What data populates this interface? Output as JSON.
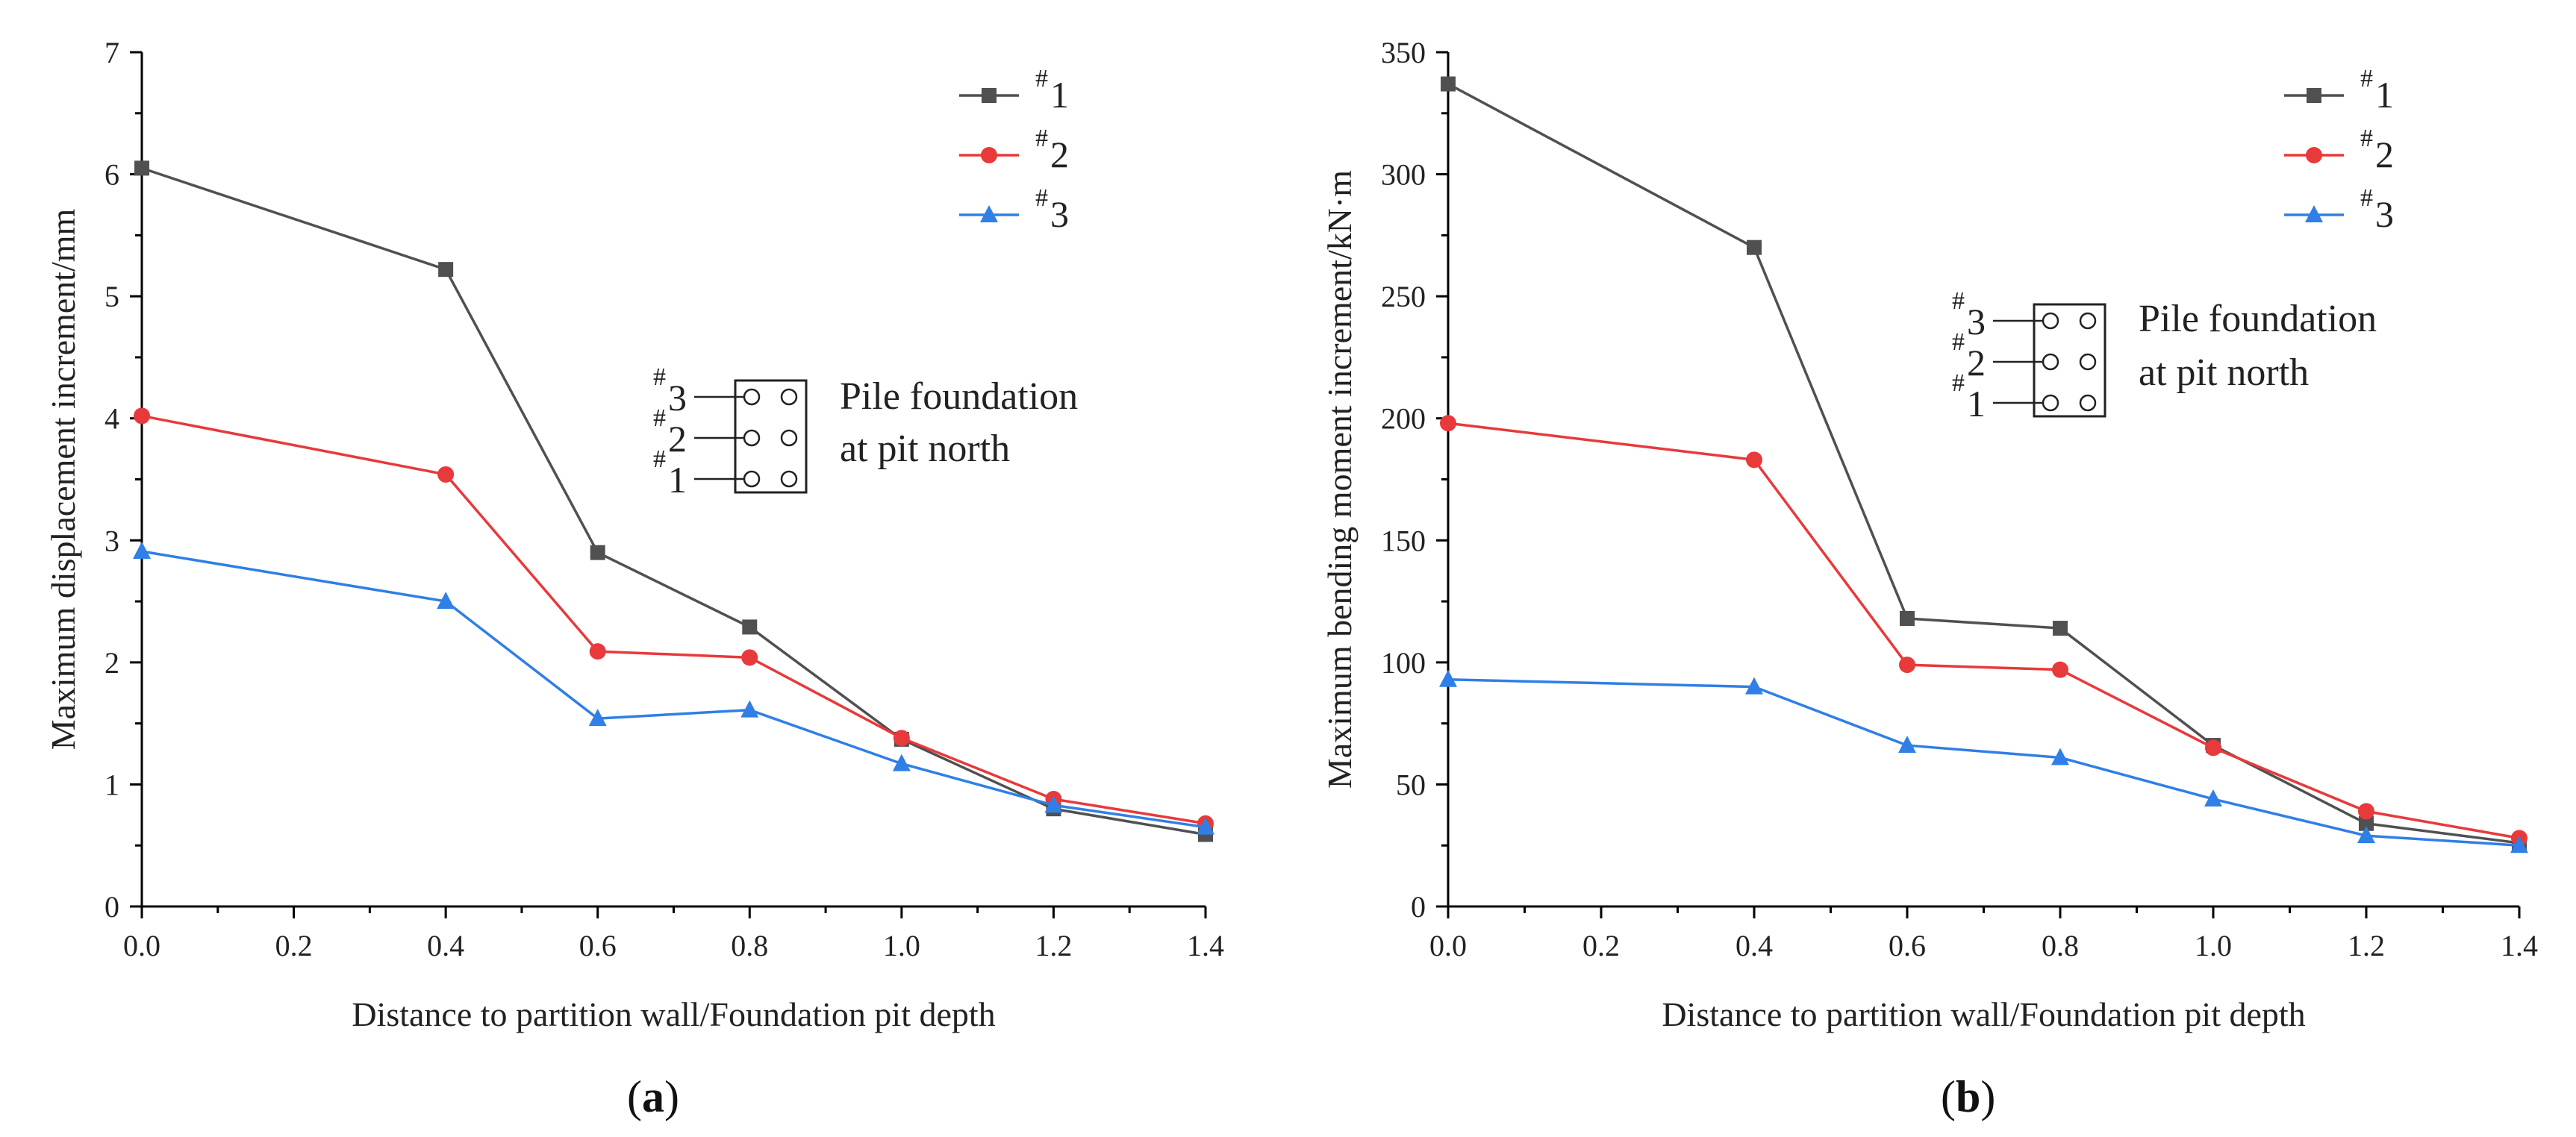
{
  "chart_data": [
    {
      "type": "line",
      "panel_label": "(a)",
      "xlabel": "Distance to partition wall/Foundation pit depth",
      "ylabel": "Maximum displacement increment/mm",
      "xlim": [
        0.0,
        1.4
      ],
      "ylim": [
        0,
        7
      ],
      "xticks": [
        "0.0",
        "0.2",
        "0.4",
        "0.6",
        "0.8",
        "1.0",
        "1.2",
        "1.4"
      ],
      "yticks": [
        "0",
        "1",
        "2",
        "3",
        "4",
        "5",
        "6",
        "7"
      ],
      "x": [
        0.0,
        0.4,
        0.6,
        0.8,
        1.0,
        1.2,
        1.4
      ],
      "series": [
        {
          "name": "1",
          "prefix": "#",
          "marker": "square",
          "color": "#505050",
          "values": [
            6.05,
            5.22,
            2.9,
            2.29,
            1.37,
            0.8,
            0.59
          ]
        },
        {
          "name": "2",
          "prefix": "#",
          "marker": "circle",
          "color": "#e8393b",
          "values": [
            4.02,
            3.54,
            2.09,
            2.04,
            1.38,
            0.88,
            0.68
          ]
        },
        {
          "name": "3",
          "prefix": "#",
          "marker": "triangle",
          "color": "#2f7fe6",
          "values": [
            2.91,
            2.5,
            1.54,
            1.61,
            1.17,
            0.83,
            0.65
          ]
        }
      ],
      "legend_position": "top-right",
      "inset": {
        "caption_line1": "Pile foundation",
        "caption_line2": "at pit north",
        "labels": [
          "3",
          "2",
          "1"
        ],
        "prefix": "#"
      }
    },
    {
      "type": "line",
      "panel_label": "(b)",
      "xlabel": "Distance to partition wall/Foundation pit depth",
      "ylabel": "Maximum bending moment increment/kN·m",
      "xlim": [
        0.0,
        1.4
      ],
      "ylim": [
        0,
        350
      ],
      "xticks": [
        "0.0",
        "0.2",
        "0.4",
        "0.6",
        "0.8",
        "1.0",
        "1.2",
        "1.4"
      ],
      "yticks": [
        "0",
        "50",
        "100",
        "150",
        "200",
        "250",
        "300",
        "350"
      ],
      "x": [
        0.0,
        0.4,
        0.6,
        0.8,
        1.0,
        1.2,
        1.4
      ],
      "series": [
        {
          "name": "1",
          "prefix": "#",
          "marker": "square",
          "color": "#505050",
          "values": [
            337,
            270,
            118,
            114,
            66,
            34,
            26
          ]
        },
        {
          "name": "2",
          "prefix": "#",
          "marker": "circle",
          "color": "#e8393b",
          "values": [
            198,
            183,
            99,
            97,
            65,
            39,
            28
          ]
        },
        {
          "name": "3",
          "prefix": "#",
          "marker": "triangle",
          "color": "#2f7fe6",
          "values": [
            93,
            90,
            66,
            61,
            44,
            29,
            25
          ]
        }
      ],
      "legend_position": "top-right",
      "inset": {
        "caption_line1": "Pile foundation",
        "caption_line2": "at pit north",
        "labels": [
          "3",
          "2",
          "1"
        ],
        "prefix": "#"
      }
    }
  ]
}
